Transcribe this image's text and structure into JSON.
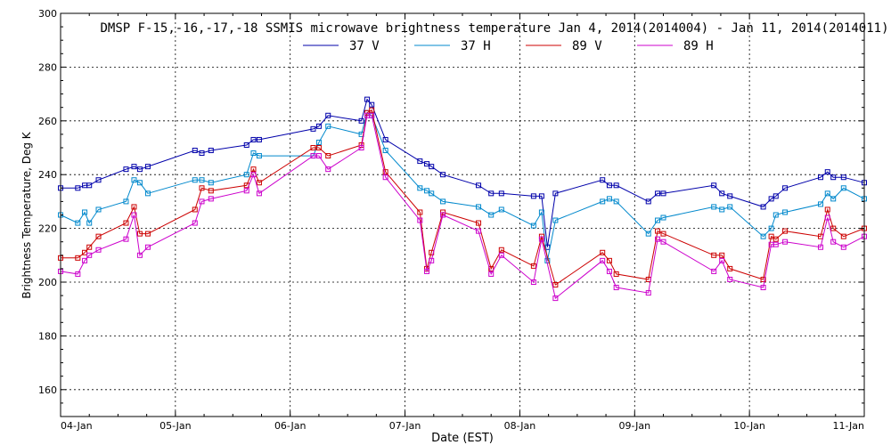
{
  "chart_data": {
    "type": "line",
    "title": "DMSP F-15,-16,-17,-18 SSMIS microwave brightness temperature Jan  4, 2014(2014004) - Jan 11, 2014(2014011)",
    "xlabel": "Date (EST)",
    "ylabel": "Brightness Temperature, Deg K",
    "ylim": [
      150,
      300
    ],
    "xlim": [
      0,
      7
    ],
    "x_ticks": [
      {
        "x": 0,
        "label": "04-Jan"
      },
      {
        "x": 1,
        "label": "05-Jan"
      },
      {
        "x": 2,
        "label": "06-Jan"
      },
      {
        "x": 3,
        "label": "07-Jan"
      },
      {
        "x": 4,
        "label": "08-Jan"
      },
      {
        "x": 5,
        "label": "09-Jan"
      },
      {
        "x": 6,
        "label": "10-Jan"
      },
      {
        "x": 7,
        "label": "11-Jan"
      }
    ],
    "y_ticks": [
      160,
      180,
      200,
      220,
      240,
      260,
      280,
      300
    ],
    "grid": true,
    "legend_position": "top",
    "series": [
      {
        "name": "37 V",
        "color": "#0000aa",
        "points": [
          [
            0.0,
            235
          ],
          [
            0.15,
            235
          ],
          [
            0.21,
            236
          ],
          [
            0.25,
            236
          ],
          [
            0.33,
            238
          ],
          [
            0.57,
            242
          ],
          [
            0.64,
            243
          ],
          [
            0.69,
            242
          ],
          [
            0.76,
            243
          ],
          [
            1.17,
            249
          ],
          [
            1.23,
            248
          ],
          [
            1.31,
            249
          ],
          [
            1.62,
            251
          ],
          [
            1.68,
            253
          ],
          [
            1.73,
            253
          ],
          [
            2.2,
            257
          ],
          [
            2.25,
            258
          ],
          [
            2.33,
            262
          ],
          [
            2.62,
            260
          ],
          [
            2.67,
            268
          ],
          [
            2.71,
            266
          ],
          [
            2.83,
            253
          ],
          [
            3.13,
            245
          ],
          [
            3.19,
            244
          ],
          [
            3.23,
            243
          ],
          [
            3.33,
            240
          ],
          [
            3.64,
            236
          ],
          [
            3.75,
            233
          ],
          [
            3.84,
            233
          ],
          [
            4.12,
            232
          ],
          [
            4.19,
            232
          ],
          [
            4.24,
            213
          ],
          [
            4.31,
            233
          ],
          [
            4.72,
            238
          ],
          [
            4.78,
            236
          ],
          [
            4.84,
            236
          ],
          [
            5.12,
            230
          ],
          [
            5.2,
            233
          ],
          [
            5.25,
            233
          ],
          [
            5.69,
            236
          ],
          [
            5.76,
            233
          ],
          [
            5.83,
            232
          ],
          [
            6.12,
            228
          ],
          [
            6.19,
            231
          ],
          [
            6.23,
            232
          ],
          [
            6.31,
            235
          ],
          [
            6.62,
            239
          ],
          [
            6.68,
            241
          ],
          [
            6.73,
            239
          ],
          [
            6.82,
            239
          ],
          [
            7.0,
            237
          ]
        ]
      },
      {
        "name": "37 H",
        "color": "#0088cc",
        "points": [
          [
            0.0,
            225
          ],
          [
            0.15,
            222
          ],
          [
            0.21,
            226
          ],
          [
            0.25,
            222
          ],
          [
            0.33,
            227
          ],
          [
            0.57,
            230
          ],
          [
            0.64,
            238
          ],
          [
            0.69,
            237
          ],
          [
            0.76,
            233
          ],
          [
            1.17,
            238
          ],
          [
            1.23,
            238
          ],
          [
            1.31,
            237
          ],
          [
            1.62,
            240
          ],
          [
            1.68,
            248
          ],
          [
            1.73,
            247
          ],
          [
            2.2,
            247
          ],
          [
            2.25,
            252
          ],
          [
            2.33,
            258
          ],
          [
            2.62,
            255
          ],
          [
            2.67,
            263
          ],
          [
            2.71,
            262
          ],
          [
            2.83,
            249
          ],
          [
            3.13,
            235
          ],
          [
            3.19,
            234
          ],
          [
            3.23,
            233
          ],
          [
            3.33,
            230
          ],
          [
            3.64,
            228
          ],
          [
            3.75,
            225
          ],
          [
            3.84,
            227
          ],
          [
            4.12,
            221
          ],
          [
            4.19,
            226
          ],
          [
            4.24,
            208
          ],
          [
            4.31,
            223
          ],
          [
            4.72,
            230
          ],
          [
            4.78,
            231
          ],
          [
            4.84,
            230
          ],
          [
            5.12,
            218
          ],
          [
            5.2,
            223
          ],
          [
            5.25,
            224
          ],
          [
            5.69,
            228
          ],
          [
            5.76,
            227
          ],
          [
            5.83,
            228
          ],
          [
            6.12,
            217
          ],
          [
            6.19,
            220
          ],
          [
            6.23,
            225
          ],
          [
            6.31,
            226
          ],
          [
            6.62,
            229
          ],
          [
            6.68,
            233
          ],
          [
            6.73,
            231
          ],
          [
            6.82,
            235
          ],
          [
            7.0,
            231
          ]
        ]
      },
      {
        "name": "89 V",
        "color": "#cc0000",
        "points": [
          [
            0.0,
            209
          ],
          [
            0.15,
            209
          ],
          [
            0.21,
            211
          ],
          [
            0.25,
            213
          ],
          [
            0.33,
            217
          ],
          [
            0.57,
            222
          ],
          [
            0.64,
            228
          ],
          [
            0.69,
            218
          ],
          [
            0.76,
            218
          ],
          [
            1.17,
            227
          ],
          [
            1.23,
            235
          ],
          [
            1.31,
            234
          ],
          [
            1.62,
            236
          ],
          [
            1.68,
            242
          ],
          [
            1.73,
            237
          ],
          [
            2.2,
            250
          ],
          [
            2.25,
            250
          ],
          [
            2.33,
            247
          ],
          [
            2.62,
            251
          ],
          [
            2.67,
            263
          ],
          [
            2.71,
            264
          ],
          [
            2.83,
            241
          ],
          [
            3.13,
            226
          ],
          [
            3.19,
            205
          ],
          [
            3.23,
            211
          ],
          [
            3.33,
            226
          ],
          [
            3.64,
            222
          ],
          [
            3.75,
            205
          ],
          [
            3.84,
            212
          ],
          [
            4.12,
            206
          ],
          [
            4.19,
            217
          ],
          [
            4.31,
            199
          ],
          [
            4.72,
            211
          ],
          [
            4.78,
            208
          ],
          [
            4.84,
            203
          ],
          [
            5.12,
            201
          ],
          [
            5.2,
            219
          ],
          [
            5.25,
            218
          ],
          [
            5.69,
            210
          ],
          [
            5.76,
            210
          ],
          [
            5.83,
            205
          ],
          [
            6.12,
            201
          ],
          [
            6.19,
            217
          ],
          [
            6.23,
            216
          ],
          [
            6.31,
            219
          ],
          [
            6.62,
            217
          ],
          [
            6.68,
            227
          ],
          [
            6.73,
            220
          ],
          [
            6.82,
            217
          ],
          [
            7.0,
            220
          ]
        ]
      },
      {
        "name": "89 H",
        "color": "#cc00cc",
        "points": [
          [
            0.0,
            204
          ],
          [
            0.15,
            203
          ],
          [
            0.21,
            208
          ],
          [
            0.25,
            210
          ],
          [
            0.33,
            212
          ],
          [
            0.57,
            216
          ],
          [
            0.64,
            225
          ],
          [
            0.69,
            210
          ],
          [
            0.76,
            213
          ],
          [
            1.17,
            222
          ],
          [
            1.23,
            230
          ],
          [
            1.31,
            231
          ],
          [
            1.62,
            234
          ],
          [
            1.68,
            240
          ],
          [
            1.73,
            233
          ],
          [
            2.2,
            247
          ],
          [
            2.25,
            247
          ],
          [
            2.33,
            242
          ],
          [
            2.62,
            250
          ],
          [
            2.67,
            262
          ],
          [
            2.71,
            262
          ],
          [
            2.83,
            239
          ],
          [
            3.13,
            223
          ],
          [
            3.19,
            204
          ],
          [
            3.23,
            208
          ],
          [
            3.33,
            225
          ],
          [
            3.64,
            219
          ],
          [
            3.75,
            203
          ],
          [
            3.84,
            210
          ],
          [
            4.12,
            200
          ],
          [
            4.19,
            216
          ],
          [
            4.31,
            194
          ],
          [
            4.72,
            208
          ],
          [
            4.78,
            204
          ],
          [
            4.84,
            198
          ],
          [
            5.12,
            196
          ],
          [
            5.2,
            216
          ],
          [
            5.25,
            215
          ],
          [
            5.69,
            204
          ],
          [
            5.76,
            208
          ],
          [
            5.83,
            201
          ],
          [
            6.12,
            198
          ],
          [
            6.19,
            214
          ],
          [
            6.23,
            214
          ],
          [
            6.31,
            215
          ],
          [
            6.62,
            213
          ],
          [
            6.68,
            224
          ],
          [
            6.73,
            215
          ],
          [
            6.82,
            213
          ],
          [
            7.0,
            217
          ]
        ]
      }
    ]
  }
}
